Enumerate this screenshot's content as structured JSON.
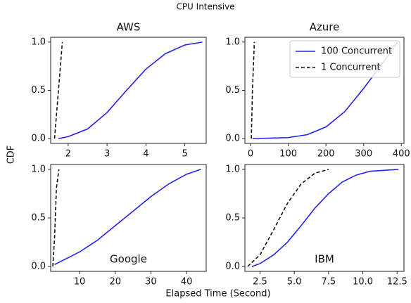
{
  "title": "CPU Intensive",
  "xlabel": "Elapsed Time (Second)",
  "ylabel": "CDF",
  "chart_data": [
    {
      "type": "line",
      "title": "AWS",
      "xlim": [
        1.55,
        5.55
      ],
      "xticks": [
        2,
        3,
        4,
        5
      ],
      "ylim": [
        -0.05,
        1.05
      ],
      "yticks": [
        {
          "value": 0,
          "label": "0.0"
        },
        {
          "value": 0.5,
          "label": "0.5"
        },
        {
          "value": 1,
          "label": "1.0"
        }
      ],
      "series": [
        {
          "color": "#2222ee",
          "dashed": false,
          "x": [
            1.75,
            2,
            2.5,
            3,
            3.5,
            4,
            4.5,
            5,
            5.45
          ],
          "values": [
            0,
            0.02,
            0.1,
            0.27,
            0.5,
            0.72,
            0.88,
            0.97,
            1.0
          ]
        },
        {
          "color": "#111111",
          "dashed": true,
          "x": [
            1.65,
            1.75,
            1.85
          ],
          "values": [
            0,
            0.5,
            1.0
          ]
        }
      ]
    },
    {
      "type": "line",
      "title": "Azure",
      "legend": "upper right",
      "xlim": [
        -15,
        407
      ],
      "xticks": [
        0,
        100,
        200,
        300,
        400
      ],
      "ylim": [
        -0.05,
        1.05
      ],
      "yticks": [
        {
          "value": 0,
          "label": "0.0"
        },
        {
          "value": 0.5,
          "label": "0.5"
        },
        {
          "value": 1,
          "label": "1.0"
        }
      ],
      "series": [
        {
          "name": "100 Concurrent",
          "color": "#2222ee",
          "dashed": false,
          "x": [
            5,
            100,
            150,
            200,
            250,
            300,
            350,
            390
          ],
          "values": [
            0,
            0.01,
            0.04,
            0.12,
            0.28,
            0.52,
            0.78,
            1.0
          ]
        },
        {
          "name": "1 Concurrent",
          "color": "#111111",
          "dashed": true,
          "x": [
            2,
            5,
            10
          ],
          "values": [
            0,
            0.5,
            1.0
          ]
        }
      ]
    },
    {
      "type": "line",
      "annotation": "Google",
      "xlim": [
        1.9,
        45.5
      ],
      "xticks": [
        10,
        20,
        30,
        40
      ],
      "ylim": [
        -0.05,
        1.05
      ],
      "yticks": [
        {
          "value": 0,
          "label": "0.0"
        },
        {
          "value": 0.5,
          "label": "0.5"
        },
        {
          "value": 1,
          "label": "1.0"
        }
      ],
      "series": [
        {
          "color": "#2222ee",
          "dashed": false,
          "x": [
            3,
            10,
            15,
            20,
            25,
            30,
            35,
            40,
            44
          ],
          "values": [
            0.02,
            0.15,
            0.27,
            0.42,
            0.57,
            0.72,
            0.85,
            0.95,
            1.0
          ]
        },
        {
          "color": "#111111",
          "dashed": true,
          "x": [
            2.5,
            3,
            3.5,
            4.2
          ],
          "values": [
            0,
            0.3,
            0.8,
            1.0
          ]
        }
      ]
    },
    {
      "type": "line",
      "annotation": "IBM",
      "xlim": [
        1.4,
        13.0
      ],
      "xticks": [
        2.5,
        {
          "value": 5,
          "label": "5.0"
        },
        7.5,
        {
          "value": 10,
          "label": "10.0"
        },
        12.5
      ],
      "ylim": [
        -0.05,
        1.05
      ],
      "yticks": [
        {
          "value": 0,
          "label": "0.0"
        },
        {
          "value": 0.5,
          "label": "0.5"
        },
        {
          "value": 1,
          "label": "1.0"
        }
      ],
      "series": [
        {
          "color": "#2222ee",
          "dashed": false,
          "x": [
            1.9,
            2.5,
            3.5,
            4.5,
            5.5,
            6.5,
            7.5,
            8.5,
            9.5,
            10.5,
            12.6
          ],
          "values": [
            0,
            0.03,
            0.12,
            0.25,
            0.42,
            0.6,
            0.75,
            0.87,
            0.94,
            0.98,
            1.0
          ]
        },
        {
          "color": "#111111",
          "dashed": true,
          "x": [
            1.6,
            2.5,
            3.5,
            4.5,
            5.5,
            6.5,
            7.5
          ],
          "values": [
            0,
            0.12,
            0.38,
            0.65,
            0.85,
            0.96,
            1.0
          ]
        }
      ]
    }
  ]
}
